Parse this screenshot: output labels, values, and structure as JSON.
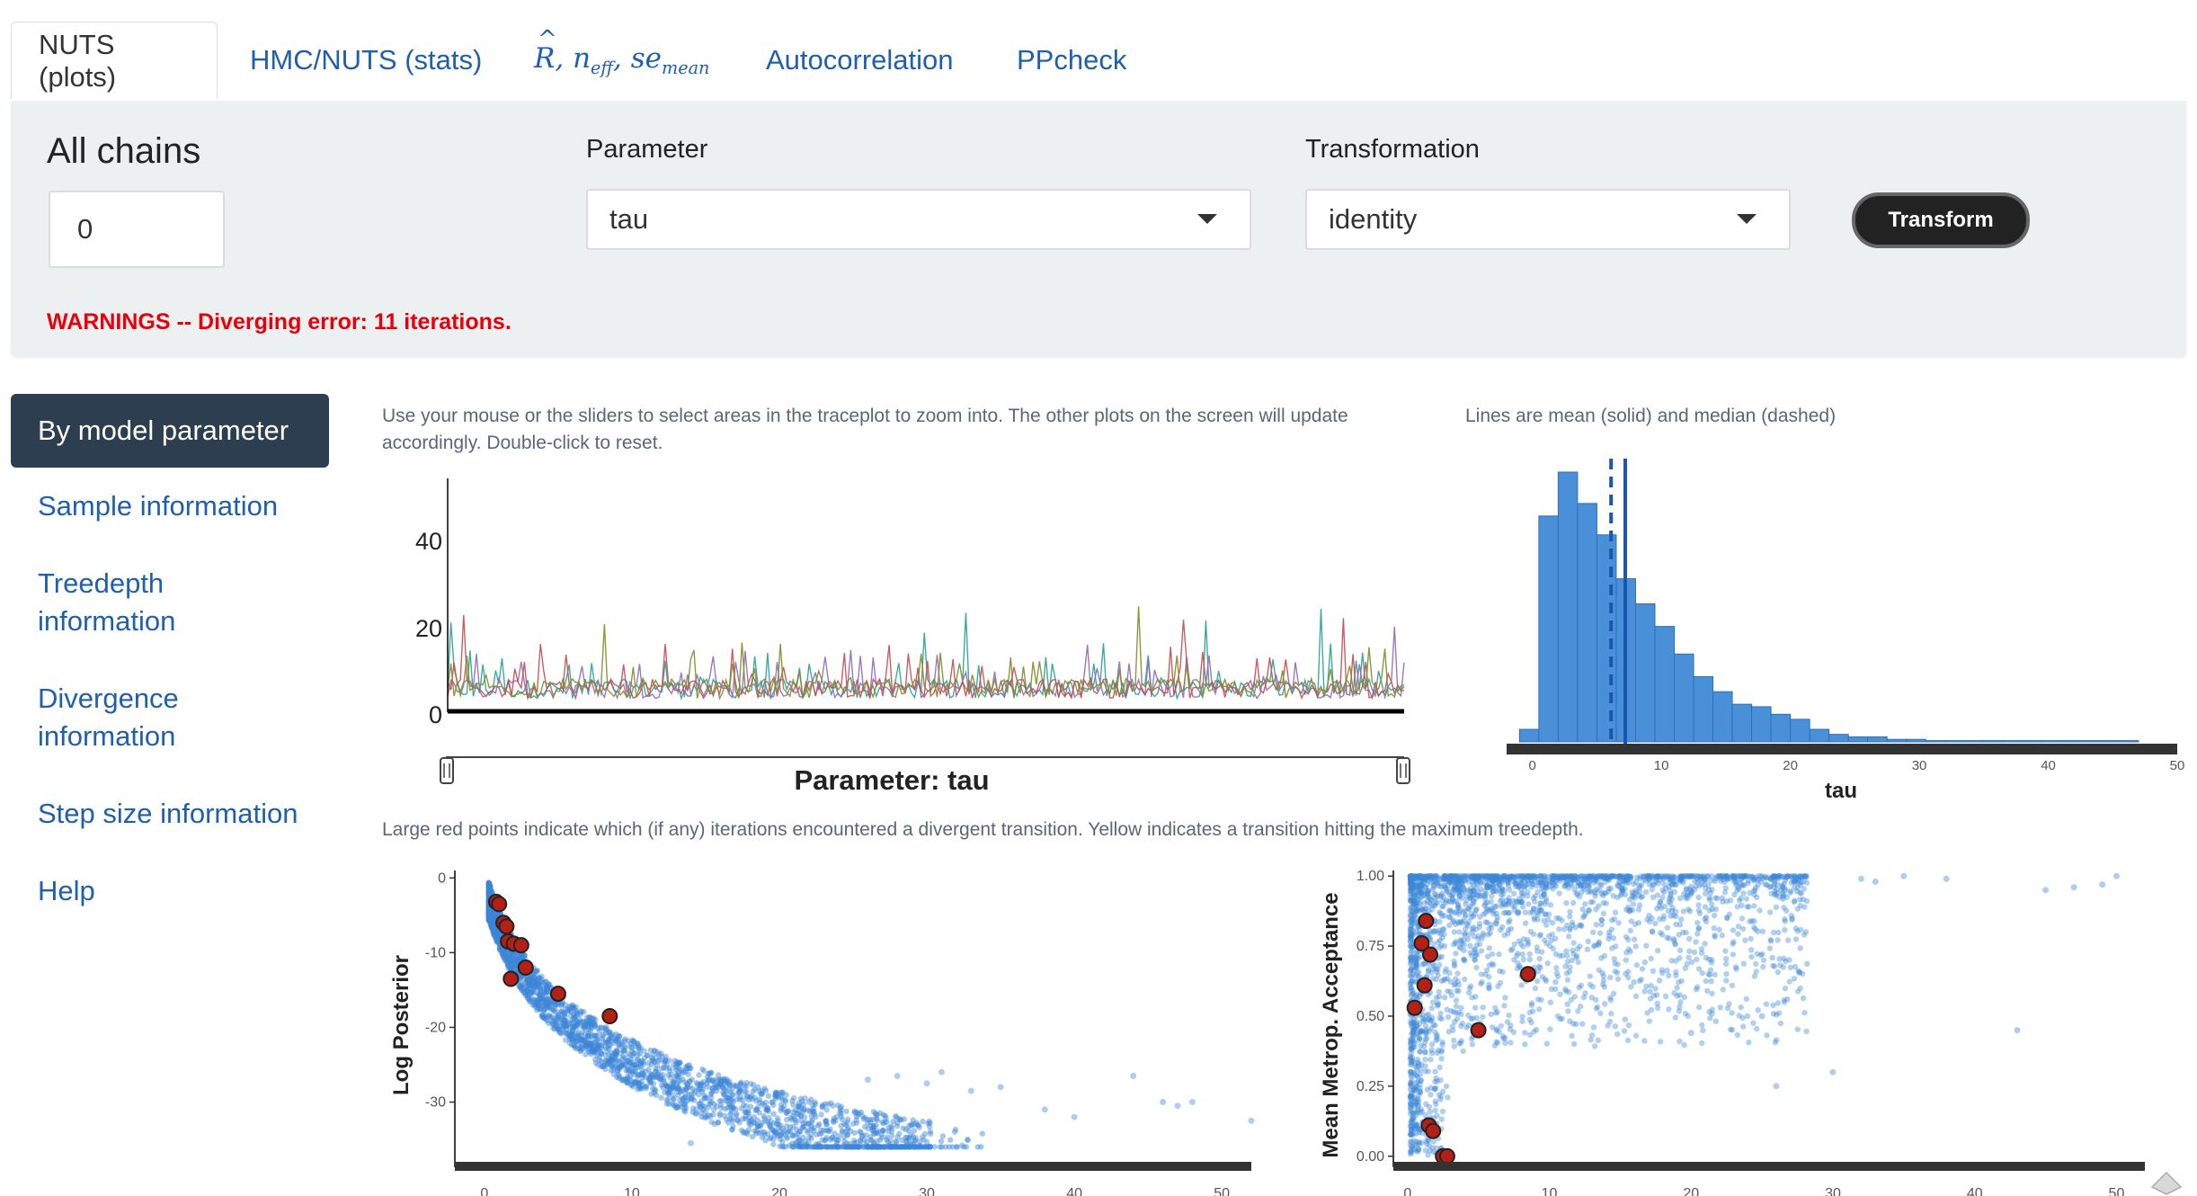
{
  "tabs": [
    {
      "label": "NUTS (plots)",
      "active": true
    },
    {
      "label": "HMC/NUTS (stats)",
      "active": false
    },
    {
      "label": "R, n, se",
      "active": false
    },
    {
      "label": "Autocorrelation",
      "active": false
    },
    {
      "label": "PPcheck",
      "active": false
    }
  ],
  "stats_tab": {
    "r": "R",
    "n": "n",
    "n_sub": "eff",
    "se": "se",
    "se_sub": "mean"
  },
  "controls": {
    "chains_label": "All chains",
    "chains_value": "0",
    "parameter_label": "Parameter",
    "parameter_value": "tau",
    "transformation_label": "Transformation",
    "transformation_value": "identity",
    "transform_button": "Transform",
    "warning": "WARNINGS -- Diverging error: 11 iterations."
  },
  "sidebar": {
    "active": "By model parameter",
    "items": [
      "Sample information",
      "Treedepth\ninformation",
      "Divergence\ninformation",
      "Step size information",
      "Help"
    ]
  },
  "notes": {
    "trace": "Use your mouse or the sliders to select areas in the traceplot to zoom into. The other plots on the screen will update accordingly. Double-click to reset.",
    "hist": "Lines are mean (solid) and median (dashed)",
    "scatter": "Large red points indicate which (if any) iterations encountered a divergent transition. Yellow indicates a transition hitting the maximum treedepth."
  },
  "colors": {
    "accent": "#1f5fb0",
    "hist_fill": "#4a90d9",
    "divergent": "#b22016",
    "warning": "#e8000b",
    "sidebar_active": "#2c3e50"
  },
  "chart_data": [
    {
      "type": "line",
      "xlabel": "Parameter: tau",
      "ylabel": "",
      "y_ticks": [
        "40",
        "20",
        "0"
      ],
      "ylim": [
        0,
        50
      ],
      "series": [
        {
          "color": "#2aa198",
          "values": []
        },
        {
          "color": "#8e6bb8",
          "values": []
        },
        {
          "color": "#c44e52",
          "values": []
        },
        {
          "color": "#7f8c2a",
          "values": []
        }
      ]
    },
    {
      "type": "bar",
      "xlabel": "tau",
      "x_ticks": [
        "0",
        "10",
        "20",
        "30",
        "40",
        "50"
      ],
      "xlim": [
        -2,
        50
      ],
      "bin_width": 1.5,
      "bins_start": -1,
      "values": [
        10,
        180,
        215,
        190,
        165,
        130,
        110,
        92,
        70,
        52,
        40,
        30,
        28,
        22,
        18,
        10,
        6,
        4,
        4,
        2,
        2,
        1,
        1,
        1,
        1,
        1,
        1,
        1,
        1,
        1,
        1,
        1
      ],
      "mean": 7.2,
      "median": 6.1
    },
    {
      "type": "scatter",
      "xlabel": "",
      "ylabel": "Log Posterior",
      "x_ticks": [
        "0",
        "10",
        "20",
        "30",
        "40",
        "50"
      ],
      "y_ticks": [
        "0",
        "-10",
        "-20",
        "-30"
      ],
      "xlim": [
        -2,
        52
      ],
      "ylim": [
        -38,
        1
      ],
      "divergent_points": [
        [
          0.8,
          -3.2
        ],
        [
          1.0,
          -3.5
        ],
        [
          1.3,
          -6.0
        ],
        [
          1.5,
          -6.5
        ],
        [
          1.6,
          -8.5
        ],
        [
          2.0,
          -8.8
        ],
        [
          2.5,
          -9.0
        ],
        [
          2.8,
          -12.0
        ],
        [
          1.8,
          -13.5
        ],
        [
          5.0,
          -15.5
        ],
        [
          8.5,
          -18.5
        ]
      ],
      "outliers": [
        [
          26,
          -27
        ],
        [
          28,
          -26.5
        ],
        [
          30,
          -27.5
        ],
        [
          31,
          -26
        ],
        [
          33,
          -28.5
        ],
        [
          35,
          -28
        ],
        [
          38,
          -31
        ],
        [
          40,
          -32
        ],
        [
          44,
          -26.5
        ],
        [
          46,
          -30
        ],
        [
          47,
          -30.5
        ],
        [
          48,
          -30
        ],
        [
          52,
          -32.5
        ],
        [
          14,
          -35.5
        ]
      ]
    },
    {
      "type": "scatter",
      "xlabel": "",
      "ylabel": "Mean Metrop. Acceptance",
      "x_ticks": [
        "0",
        "10",
        "20",
        "30",
        "40",
        "50"
      ],
      "y_ticks": [
        "1.00",
        "0.75",
        "0.50",
        "0.25",
        "0.00"
      ],
      "xlim": [
        -1,
        52
      ],
      "ylim": [
        -0.02,
        1.02
      ],
      "divergent_points": [
        [
          1.3,
          0.84
        ],
        [
          1.0,
          0.76
        ],
        [
          1.6,
          0.72
        ],
        [
          1.2,
          0.61
        ],
        [
          0.5,
          0.53
        ],
        [
          8.5,
          0.65
        ],
        [
          5.0,
          0.45
        ],
        [
          1.5,
          0.11
        ],
        [
          1.8,
          0.09
        ],
        [
          2.5,
          0.0
        ],
        [
          2.8,
          0.0
        ]
      ],
      "outliers": [
        [
          32,
          0.99
        ],
        [
          33,
          0.98
        ],
        [
          35,
          1.0
        ],
        [
          38,
          0.99
        ],
        [
          45,
          0.95
        ],
        [
          47,
          0.96
        ],
        [
          49,
          0.97
        ],
        [
          50,
          1.0
        ],
        [
          43,
          0.45
        ],
        [
          26,
          0.25
        ],
        [
          30,
          0.3
        ],
        [
          25,
          0.5
        ],
        [
          20,
          0.44
        ]
      ]
    }
  ]
}
